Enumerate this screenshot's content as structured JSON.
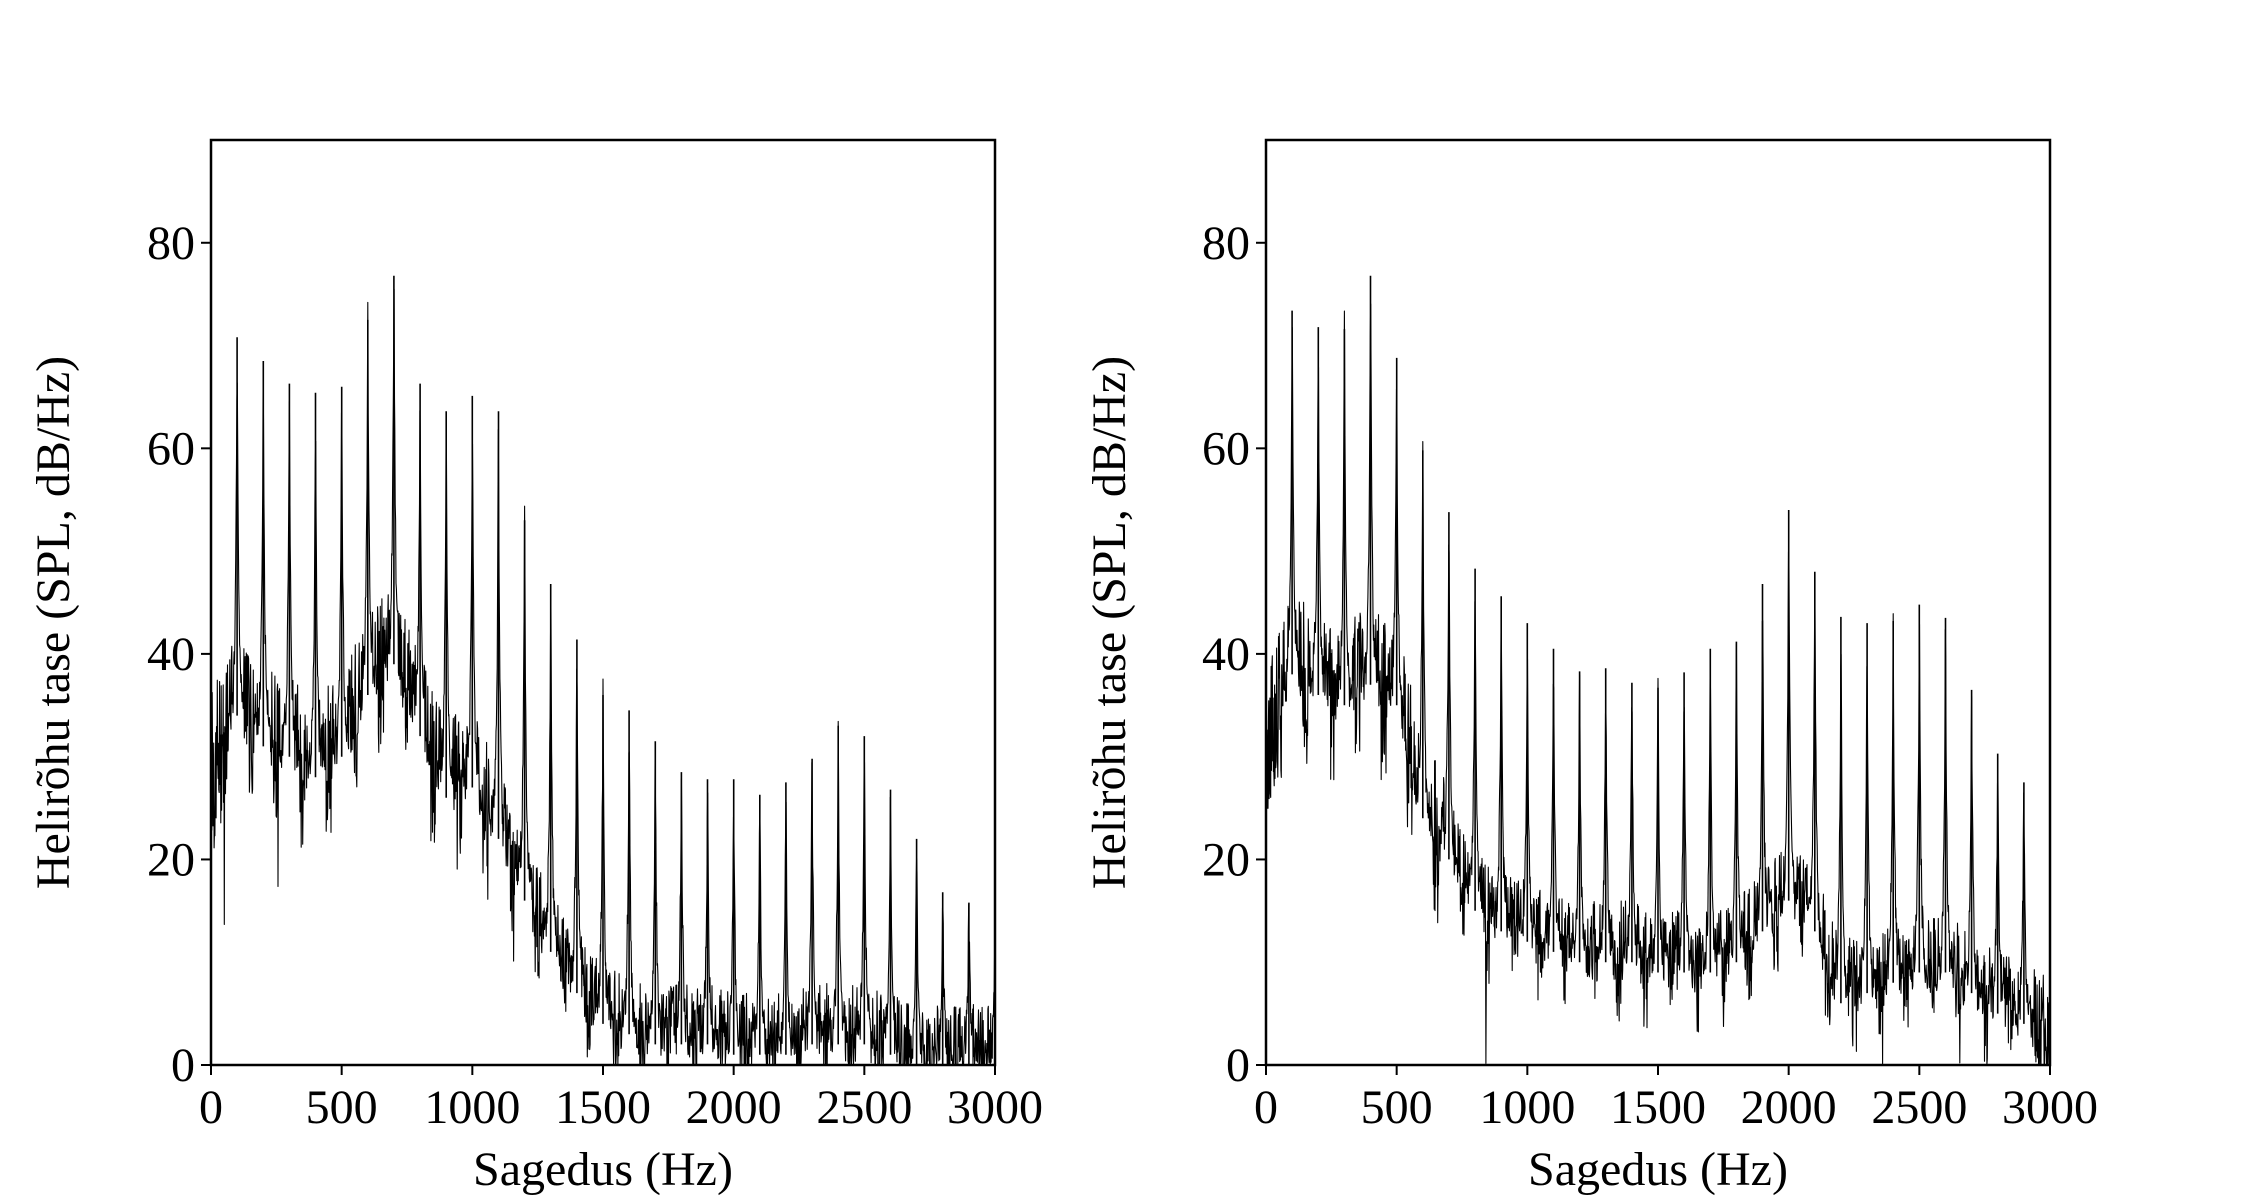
{
  "chart_data": [
    {
      "type": "line",
      "xlabel": "Sagedus (Hz)",
      "ylabel": "Helirõhu tase (SPL, dB/Hz)",
      "xlim": [
        0,
        3000
      ],
      "ylim": [
        0,
        90
      ],
      "xticks": [
        0,
        500,
        1000,
        1500,
        2000,
        2500,
        3000
      ],
      "yticks": [
        0,
        20,
        40,
        60,
        80
      ],
      "xtick_labels": [
        "0",
        "500",
        "1000",
        "1500",
        "2000",
        "2500",
        "3000"
      ],
      "ytick_labels": [
        "0",
        "20",
        "40",
        "60",
        "80"
      ],
      "grid": false,
      "color": "#000000",
      "floor": [
        [
          0,
          28
        ],
        [
          100,
          34
        ],
        [
          200,
          31
        ],
        [
          300,
          30
        ],
        [
          400,
          28
        ],
        [
          500,
          30
        ],
        [
          600,
          36
        ],
        [
          700,
          39
        ],
        [
          800,
          32
        ],
        [
          900,
          26
        ],
        [
          1000,
          27
        ],
        [
          1100,
          22
        ],
        [
          1200,
          16
        ],
        [
          1300,
          11
        ],
        [
          1400,
          7
        ],
        [
          1500,
          4
        ],
        [
          1600,
          3
        ],
        [
          1700,
          2
        ],
        [
          1800,
          2
        ],
        [
          1900,
          2
        ],
        [
          2000,
          1
        ],
        [
          2100,
          1
        ],
        [
          2200,
          1
        ],
        [
          2300,
          2
        ],
        [
          2400,
          2
        ],
        [
          2500,
          2
        ],
        [
          2600,
          1
        ],
        [
          2700,
          0
        ],
        [
          2800,
          0
        ],
        [
          2900,
          0
        ],
        [
          3000,
          0
        ]
      ],
      "peaks": [
        [
          100,
          70.8
        ],
        [
          200,
          68.5
        ],
        [
          300,
          66.3
        ],
        [
          400,
          65.4
        ],
        [
          500,
          66
        ],
        [
          600,
          72.5
        ],
        [
          700,
          76.8
        ],
        [
          800,
          66.3
        ],
        [
          900,
          63.6
        ],
        [
          1000,
          65.1
        ],
        [
          1100,
          63.6
        ],
        [
          1200,
          53
        ],
        [
          1300,
          46.8
        ],
        [
          1400,
          41.4
        ],
        [
          1500,
          36
        ],
        [
          1600,
          34.5
        ],
        [
          1700,
          31.5
        ],
        [
          1800,
          28.5
        ],
        [
          1900,
          27.8
        ],
        [
          2000,
          27.8
        ],
        [
          2100,
          26.3
        ],
        [
          2200,
          27.5
        ],
        [
          2300,
          29.8
        ],
        [
          2400,
          33
        ],
        [
          2500,
          32
        ],
        [
          2600,
          26.8
        ],
        [
          2700,
          22
        ],
        [
          2800,
          16.8
        ],
        [
          2900,
          15.8
        ],
        [
          3000,
          13.8
        ]
      ]
    },
    {
      "type": "line",
      "xlabel": "Sagedus (Hz)",
      "ylabel": "Helirõhu tase (SPL, dB/Hz)",
      "xlim": [
        0,
        3000
      ],
      "ylim": [
        0,
        90
      ],
      "xticks": [
        0,
        500,
        1000,
        1500,
        2000,
        2500,
        3000
      ],
      "yticks": [
        0,
        20,
        40,
        60,
        80
      ],
      "xtick_labels": [
        "0",
        "500",
        "1000",
        "1500",
        "2000",
        "2500",
        "3000"
      ],
      "ytick_labels": [
        "0",
        "20",
        "40",
        "60",
        "80"
      ],
      "grid": false,
      "color": "#000000",
      "floor": [
        [
          0,
          30
        ],
        [
          100,
          38
        ],
        [
          200,
          36
        ],
        [
          300,
          35
        ],
        [
          400,
          37
        ],
        [
          500,
          35
        ],
        [
          600,
          24
        ],
        [
          700,
          20
        ],
        [
          800,
          15
        ],
        [
          900,
          13
        ],
        [
          1000,
          12
        ],
        [
          1100,
          11
        ],
        [
          1200,
          10
        ],
        [
          1300,
          10
        ],
        [
          1400,
          10
        ],
        [
          1500,
          9
        ],
        [
          1600,
          9
        ],
        [
          1700,
          9
        ],
        [
          1800,
          10
        ],
        [
          1900,
          13
        ],
        [
          2000,
          16
        ],
        [
          2100,
          13
        ],
        [
          2200,
          6
        ],
        [
          2300,
          7
        ],
        [
          2400,
          8
        ],
        [
          2500,
          9
        ],
        [
          2600,
          9
        ],
        [
          2700,
          7
        ],
        [
          2800,
          5
        ],
        [
          2900,
          4
        ],
        [
          3000,
          3
        ]
      ],
      "peaks": [
        [
          100,
          73.4
        ],
        [
          200,
          71.8
        ],
        [
          300,
          71.6
        ],
        [
          400,
          76.8
        ],
        [
          500,
          68.8
        ],
        [
          600,
          59.8
        ],
        [
          700,
          53.8
        ],
        [
          800,
          48.3
        ],
        [
          900,
          45.6
        ],
        [
          1000,
          43
        ],
        [
          1100,
          40.5
        ],
        [
          1200,
          38.3
        ],
        [
          1300,
          38.6
        ],
        [
          1400,
          37.2
        ],
        [
          1500,
          36.7
        ],
        [
          1600,
          38.2
        ],
        [
          1700,
          40.5
        ],
        [
          1800,
          41.2
        ],
        [
          1900,
          46.8
        ],
        [
          2000,
          54
        ],
        [
          2100,
          48
        ],
        [
          2200,
          43.6
        ],
        [
          2300,
          43
        ],
        [
          2400,
          43.2
        ],
        [
          2500,
          44.8
        ],
        [
          2600,
          43.5
        ],
        [
          2700,
          36.5
        ],
        [
          2800,
          30.3
        ],
        [
          2900,
          27.5
        ]
      ]
    }
  ]
}
